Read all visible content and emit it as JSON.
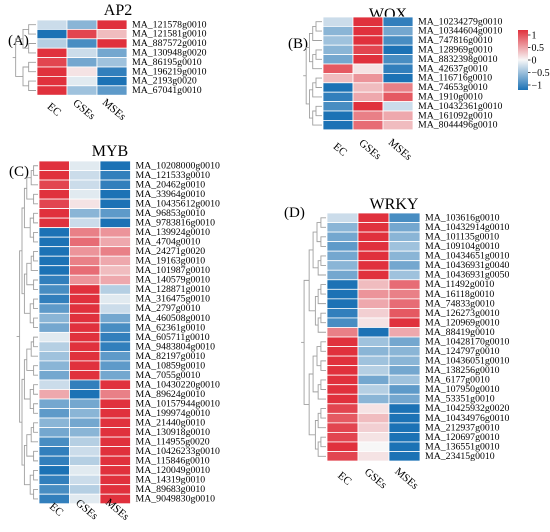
{
  "colors": {
    "high": "#e0313d",
    "mid": "#f7f7f7",
    "low": "#1c72b5",
    "dendrogram": "#a0a0a0"
  },
  "legend": {
    "ticks": [
      {
        "label": "1",
        "value": 1
      },
      {
        "label": "0.5",
        "value": 0.5
      },
      {
        "label": "0",
        "value": 0
      },
      {
        "label": "−0.5",
        "value": -0.5
      },
      {
        "label": "−1",
        "value": -1
      }
    ],
    "range": [
      -1.2,
      1.2
    ]
  },
  "panels": [
    {
      "letter": "(A)",
      "title": "AP2",
      "columns": [
        "EC",
        "GSEs",
        "MSEs"
      ],
      "genes": [
        "MA_121578g0010",
        "MA_121581g0010",
        "MA_887572g0010",
        "MA_130948g0020",
        "MA_86195g0010",
        "MA_196219g0010",
        "MA_2193g0020",
        "MA_67041g0010"
      ],
      "values": [
        [
          -0.2,
          -0.5,
          1.0
        ],
        [
          -1.1,
          0.9,
          0.3
        ],
        [
          -0.3,
          -0.8,
          1.1
        ],
        [
          1.0,
          -0.2,
          -0.6
        ],
        [
          0.9,
          -0.6,
          -0.4
        ],
        [
          1.1,
          0.1,
          -0.9
        ],
        [
          1.0,
          -0.1,
          -1.0
        ],
        [
          1.0,
          -0.4,
          -0.7
        ]
      ]
    },
    {
      "letter": "(B)",
      "title": "WOX",
      "columns": [
        "EC",
        "GSEs",
        "MSEs"
      ],
      "genes": [
        "MA_10234279g0010",
        "MA_10344604g0010",
        "MA_747816g0010",
        "MA_128969g0010",
        "MA_8832398g0010",
        "MA_42637g0010",
        "MA_116716g0010",
        "MA_74653g0010",
        "MA_1910g0010",
        "MA_10432361g0010",
        "MA_161092g0010",
        "MA_8044496g0010"
      ],
      "values": [
        [
          -0.2,
          1.1,
          -0.9
        ],
        [
          -0.5,
          1.0,
          -0.6
        ],
        [
          -0.4,
          1.0,
          -0.8
        ],
        [
          -0.5,
          0.9,
          -1.0
        ],
        [
          -0.6,
          1.0,
          -0.8
        ],
        [
          0.8,
          0.1,
          -0.9
        ],
        [
          0.3,
          0.5,
          -1.0
        ],
        [
          -1.0,
          0.3,
          0.6
        ],
        [
          -0.9,
          0.4,
          0.8
        ],
        [
          -0.8,
          1.0,
          -0.2
        ],
        [
          -1.0,
          0.6,
          0.4
        ],
        [
          -1.0,
          0.7,
          0.3
        ]
      ]
    },
    {
      "letter": "(C)",
      "title": "MYB",
      "columns": [
        "EC",
        "GSEs",
        "MSEs"
      ],
      "genes": [
        "MA_10208000g0010",
        "MA_121533g0010",
        "MA_20462g0010",
        "MA_33964g0010",
        "MA_10435612g0010",
        "MA_96853g0010",
        "MA_9783816g0010",
        "MA_139924g0010",
        "MA_4704g0010",
        "MA_24271g0020",
        "MA_19163g0010",
        "MA_101987g0010",
        "MA_140579g0010",
        "MA_128871g0010",
        "MA_316475g0010",
        "MA_2797g0010",
        "MA_460508g0010",
        "MA_62361g0010",
        "MA_605711g0010",
        "MA_9483804g0010",
        "MA_82197g0010",
        "MA_10859g0010",
        "MA_7055g0010",
        "MA_10430220g0010",
        "MA_89624g0010",
        "MA_10157944g0010",
        "MA_199974g0010",
        "MA_21440g0010",
        "MA_130918g0010",
        "MA_114955g0020",
        "MA_10426233g0010",
        "MA_115846g0010",
        "MA_120049g0010",
        "MA_14319g0010",
        "MA_89683g0010",
        "MA_9049830g0010"
      ],
      "values": [
        [
          1.0,
          -0.1,
          -1.0
        ],
        [
          1.0,
          -0.2,
          -0.9
        ],
        [
          0.9,
          -0.2,
          -0.9
        ],
        [
          1.0,
          -0.1,
          -1.0
        ],
        [
          0.9,
          0.1,
          -1.0
        ],
        [
          1.1,
          -0.5,
          -0.7
        ],
        [
          1.0,
          -0.2,
          -1.0
        ],
        [
          -1.0,
          0.6,
          0.5
        ],
        [
          -1.0,
          0.7,
          0.4
        ],
        [
          -1.0,
          0.5,
          0.6
        ],
        [
          -1.0,
          0.6,
          0.4
        ],
        [
          -1.0,
          0.7,
          0.3
        ],
        [
          -0.9,
          0.5,
          0.4
        ],
        [
          -0.8,
          1.1,
          -0.3
        ],
        [
          -0.9,
          1.0,
          -0.1
        ],
        [
          -0.7,
          1.0,
          -0.2
        ],
        [
          -0.5,
          1.0,
          -0.6
        ],
        [
          -0.6,
          1.0,
          -0.8
        ],
        [
          -0.1,
          1.0,
          -0.9
        ],
        [
          -0.3,
          1.0,
          -0.9
        ],
        [
          -0.4,
          1.0,
          -0.7
        ],
        [
          -0.5,
          1.0,
          -0.7
        ],
        [
          -0.6,
          1.0,
          -0.6
        ],
        [
          -0.2,
          -0.9,
          1.0
        ],
        [
          0.4,
          -1.0,
          0.6
        ],
        [
          -0.6,
          -0.6,
          1.1
        ],
        [
          -0.7,
          -0.5,
          1.0
        ],
        [
          -0.5,
          -0.6,
          1.0
        ],
        [
          -0.6,
          -0.5,
          1.0
        ],
        [
          -0.8,
          -0.3,
          1.0
        ],
        [
          -0.9,
          -0.2,
          1.0
        ],
        [
          -0.9,
          -0.3,
          1.0
        ],
        [
          -1.0,
          -0.1,
          1.0
        ],
        [
          -0.9,
          -0.2,
          1.0
        ],
        [
          -0.8,
          -0.3,
          1.0
        ],
        [
          -0.9,
          -0.1,
          1.0
        ]
      ]
    },
    {
      "letter": "(D)",
      "title": "WRKY",
      "columns": [
        "EC",
        "GSEs",
        "MSEs"
      ],
      "genes": [
        "MA_103616g0010",
        "MA_10432914g0010",
        "MA_101135g0010",
        "MA_109104g0010",
        "MA_10434651g0010",
        "MA_10436931g0040",
        "MA_10436931g0050",
        "MA_11492g0010",
        "MA_16118g0010",
        "MA_74833g0010",
        "MA_126273g0010",
        "MA_120969g0010",
        "MA_88419g0010",
        "MA_10428170g0010",
        "MA_124797g0010",
        "MA_10436051g0010",
        "MA_138256g0010",
        "MA_6177g0010",
        "MA_107950g0010",
        "MA_53351g0010",
        "MA_10425932g0020",
        "MA_10434976g0010",
        "MA_212937g0010",
        "MA_120697g0010",
        "MA_136551g0010",
        "MA_23415g0010"
      ],
      "values": [
        [
          -0.2,
          1.0,
          -0.8
        ],
        [
          -0.5,
          1.0,
          -0.6
        ],
        [
          -0.6,
          1.0,
          -0.5
        ],
        [
          -0.7,
          1.0,
          -0.4
        ],
        [
          -0.6,
          1.0,
          -0.5
        ],
        [
          -0.5,
          1.0,
          -0.6
        ],
        [
          -0.6,
          1.0,
          -0.4
        ],
        [
          -1.0,
          0.3,
          0.7
        ],
        [
          -1.0,
          0.5,
          0.6
        ],
        [
          -1.0,
          0.4,
          0.7
        ],
        [
          -0.9,
          0.2,
          0.8
        ],
        [
          -0.8,
          0.1,
          1.1
        ],
        [
          0.6,
          -1.0,
          0.4
        ],
        [
          1.0,
          -0.4,
          -0.6
        ],
        [
          1.0,
          -0.5,
          -0.5
        ],
        [
          1.0,
          -0.4,
          -0.5
        ],
        [
          1.0,
          -0.3,
          -0.6
        ],
        [
          1.0,
          -0.6,
          -0.4
        ],
        [
          1.0,
          -0.3,
          -0.7
        ],
        [
          1.0,
          -0.5,
          -0.6
        ],
        [
          0.9,
          0.1,
          -1.0
        ],
        [
          0.8,
          0.3,
          -1.0
        ],
        [
          0.9,
          0.2,
          -1.0
        ],
        [
          0.9,
          0.1,
          -1.0
        ],
        [
          1.0,
          0.0,
          -1.0
        ],
        [
          0.9,
          0.1,
          -1.0
        ]
      ]
    }
  ]
}
